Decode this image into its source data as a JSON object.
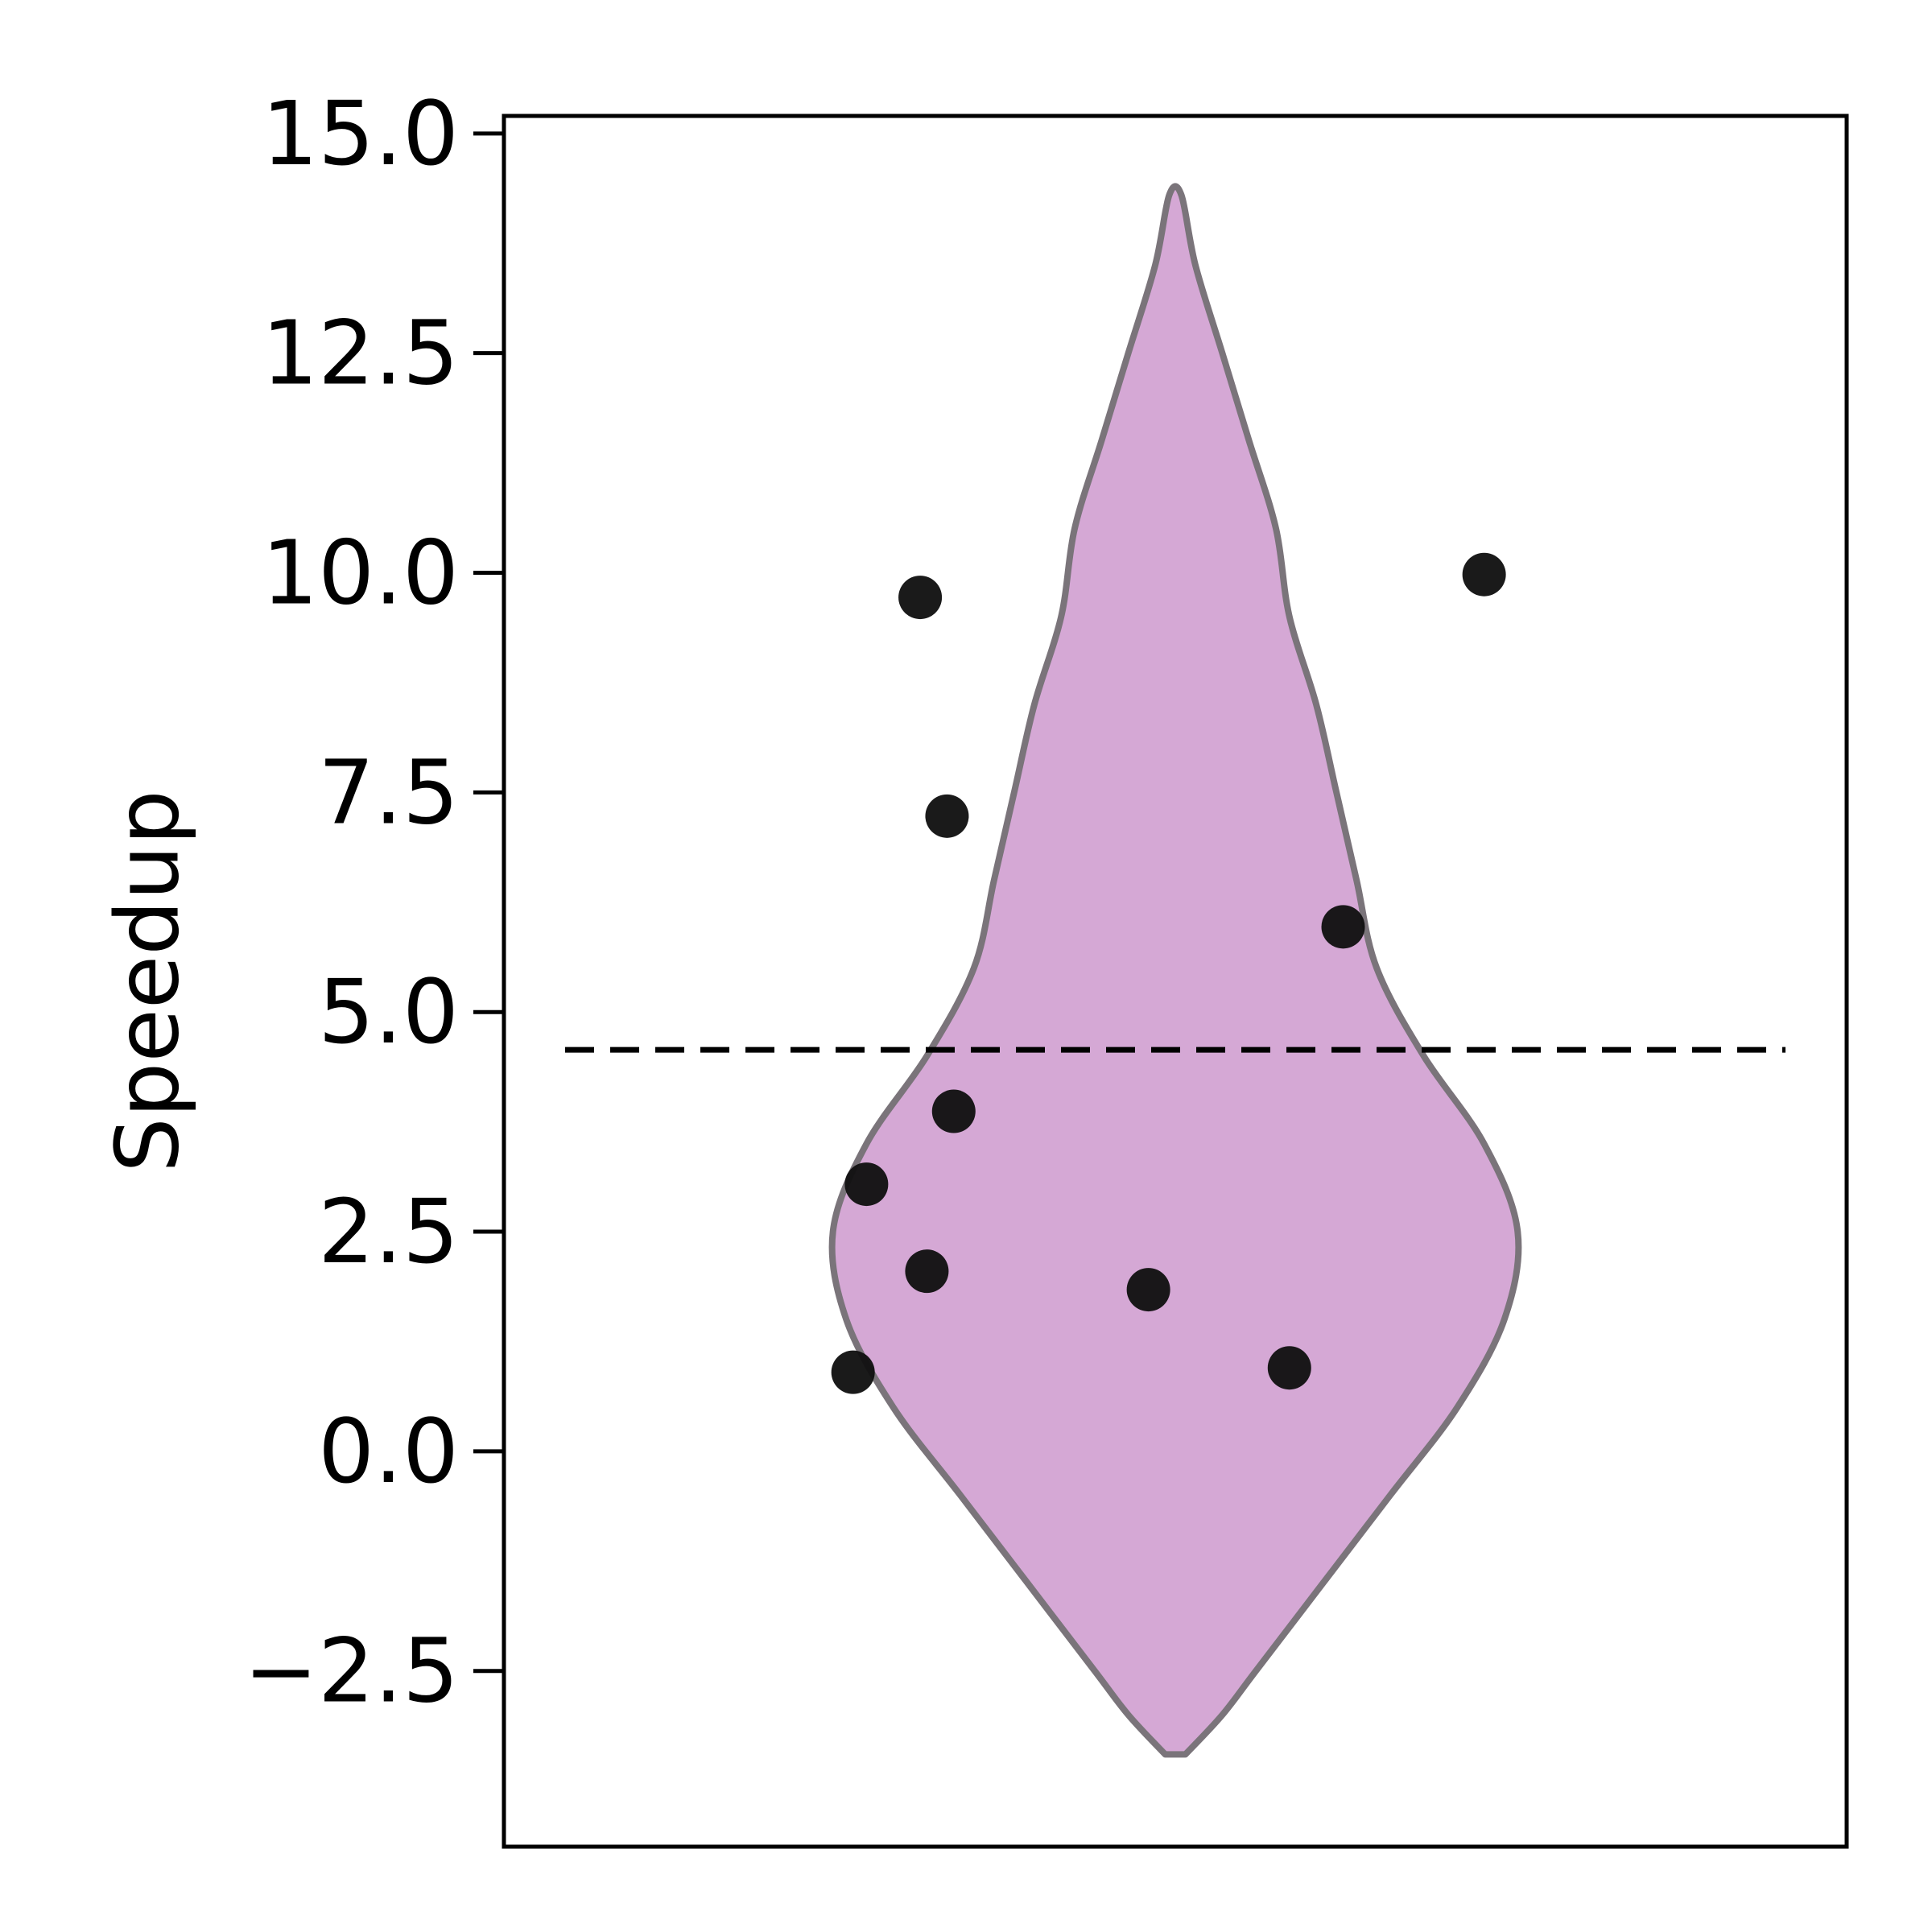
{
  "chart_data": {
    "type": "violin",
    "title": "",
    "xlabel": "",
    "ylabel": "Speedup",
    "ylim": [
      -4.5,
      15.2
    ],
    "yticks": [
      -2.5,
      0.0,
      2.5,
      5.0,
      7.5,
      10.0,
      12.5,
      15.0
    ],
    "ytick_labels": [
      "−2.5",
      "0.0",
      "2.5",
      "5.0",
      "7.5",
      "10.0",
      "12.5",
      "15.0"
    ],
    "grid": false,
    "reference_line": {
      "y": 4.57,
      "style": "dashed",
      "color": "#000000"
    },
    "violin": {
      "fill_color": "#d5a8d5",
      "edge_color": "#7a747a",
      "y_min": -3.45,
      "y_max": 14.3,
      "half_width_fraction_profile": [
        [
          -3.45,
          0.015
        ],
        [
          -3.0,
          0.07
        ],
        [
          -2.5,
          0.12
        ],
        [
          -1.5,
          0.22
        ],
        [
          -0.5,
          0.32
        ],
        [
          0.5,
          0.42
        ],
        [
          1.5,
          0.49
        ],
        [
          2.5,
          0.51
        ],
        [
          3.5,
          0.46
        ],
        [
          4.5,
          0.37
        ],
        [
          5.5,
          0.3
        ],
        [
          6.5,
          0.27
        ],
        [
          7.5,
          0.24
        ],
        [
          8.5,
          0.21
        ],
        [
          9.5,
          0.17
        ],
        [
          10.5,
          0.15
        ],
        [
          11.5,
          0.11
        ],
        [
          12.5,
          0.07
        ],
        [
          13.5,
          0.03
        ],
        [
          14.3,
          0.009
        ]
      ]
    },
    "points": [
      {
        "x": -0.38,
        "y": 9.72
      },
      {
        "x": 0.46,
        "y": 9.98
      },
      {
        "x": -0.34,
        "y": 7.23
      },
      {
        "x": 0.25,
        "y": 5.97
      },
      {
        "x": -0.33,
        "y": 3.87
      },
      {
        "x": -0.46,
        "y": 3.04
      },
      {
        "x": -0.37,
        "y": 2.05
      },
      {
        "x": -0.04,
        "y": 1.84
      },
      {
        "x": 0.17,
        "y": 0.95
      },
      {
        "x": -0.48,
        "y": 0.9
      }
    ],
    "point_color": "#111111"
  }
}
